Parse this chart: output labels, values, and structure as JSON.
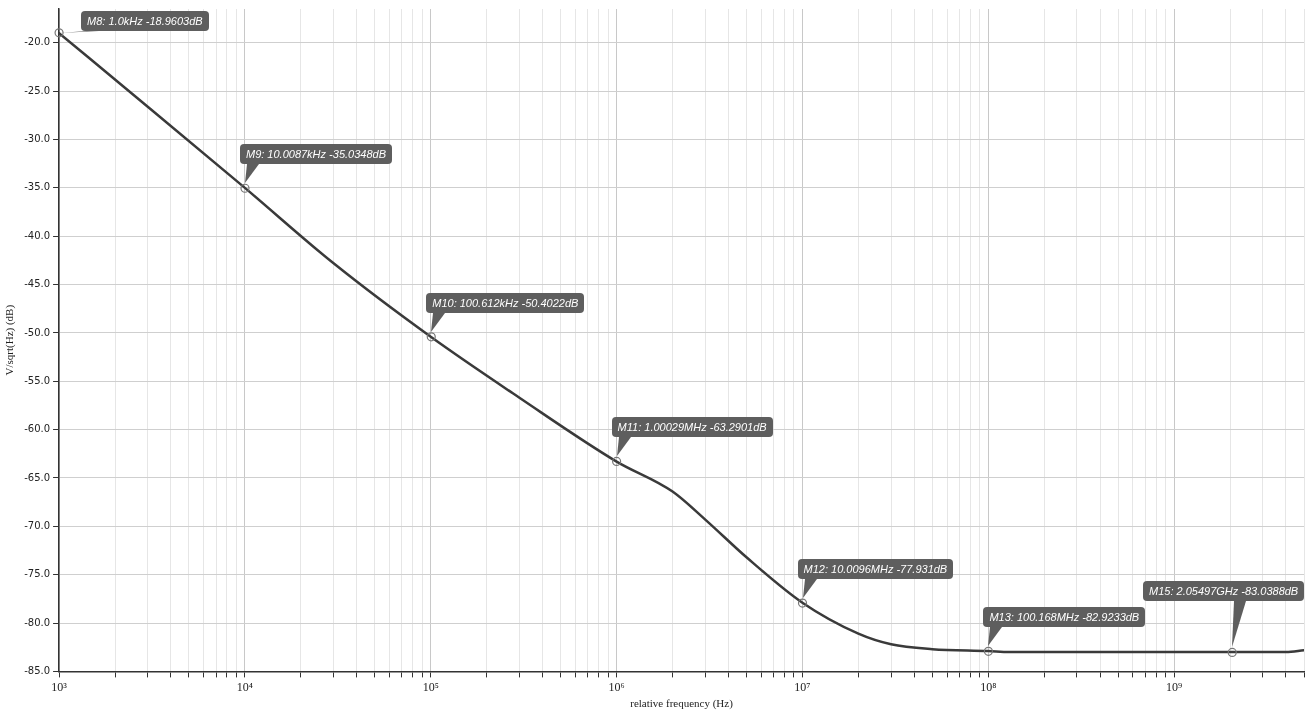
{
  "chart_data": {
    "type": "line",
    "xlabel": "relative frequency (Hz)",
    "ylabel": "V/sqrt(Hz) (dB)",
    "log": "x",
    "grid": true,
    "legend": false,
    "marker": "none",
    "line_style": "solid",
    "xlim": [
      1000,
      5000000000
    ],
    "ylim": [
      -85,
      -16.5
    ],
    "xticks": [
      {
        "value": 1000,
        "label": "10³"
      },
      {
        "value": 2000,
        "label": null
      },
      {
        "value": 3000,
        "label": null
      },
      {
        "value": 4000,
        "label": null
      },
      {
        "value": 5000,
        "label": null
      },
      {
        "value": 6000,
        "label": null
      },
      {
        "value": 7000,
        "label": null
      },
      {
        "value": 8000,
        "label": null
      },
      {
        "value": 9000,
        "label": null
      },
      {
        "value": 10000,
        "label": "10⁴"
      },
      {
        "value": 20000,
        "label": null
      },
      {
        "value": 30000,
        "label": null
      },
      {
        "value": 40000,
        "label": null
      },
      {
        "value": 50000,
        "label": null
      },
      {
        "value": 60000,
        "label": null
      },
      {
        "value": 70000,
        "label": null
      },
      {
        "value": 80000,
        "label": null
      },
      {
        "value": 90000,
        "label": null
      },
      {
        "value": 100000,
        "label": "10⁵"
      },
      {
        "value": 200000,
        "label": null
      },
      {
        "value": 300000,
        "label": null
      },
      {
        "value": 400000,
        "label": null
      },
      {
        "value": 500000,
        "label": null
      },
      {
        "value": 600000,
        "label": null
      },
      {
        "value": 700000,
        "label": null
      },
      {
        "value": 800000,
        "label": null
      },
      {
        "value": 900000,
        "label": null
      },
      {
        "value": 1000000,
        "label": "10⁶"
      },
      {
        "value": 2000000,
        "label": null
      },
      {
        "value": 3000000,
        "label": null
      },
      {
        "value": 4000000,
        "label": null
      },
      {
        "value": 5000000,
        "label": null
      },
      {
        "value": 6000000,
        "label": null
      },
      {
        "value": 7000000,
        "label": null
      },
      {
        "value": 8000000,
        "label": null
      },
      {
        "value": 9000000,
        "label": null
      },
      {
        "value": 10000000,
        "label": "10⁷"
      },
      {
        "value": 20000000,
        "label": null
      },
      {
        "value": 30000000,
        "label": null
      },
      {
        "value": 40000000,
        "label": null
      },
      {
        "value": 50000000,
        "label": null
      },
      {
        "value": 60000000,
        "label": null
      },
      {
        "value": 70000000,
        "label": null
      },
      {
        "value": 80000000,
        "label": null
      },
      {
        "value": 90000000,
        "label": null
      },
      {
        "value": 100000000,
        "label": "10⁸"
      },
      {
        "value": 200000000,
        "label": null
      },
      {
        "value": 300000000,
        "label": null
      },
      {
        "value": 400000000,
        "label": null
      },
      {
        "value": 500000000,
        "label": null
      },
      {
        "value": 600000000,
        "label": null
      },
      {
        "value": 700000000,
        "label": null
      },
      {
        "value": 800000000,
        "label": null
      },
      {
        "value": 900000000,
        "label": null
      },
      {
        "value": 1000000000,
        "label": "10⁹"
      },
      {
        "value": 2000000000,
        "label": null
      },
      {
        "value": 3000000000,
        "label": null
      },
      {
        "value": 4000000000,
        "label": null
      },
      {
        "value": 5000000000,
        "label": null
      }
    ],
    "yticks": [
      {
        "value": -20,
        "label": "-20.0"
      },
      {
        "value": -25,
        "label": "-25.0"
      },
      {
        "value": -30,
        "label": "-30.0"
      },
      {
        "value": -35,
        "label": "-35.0"
      },
      {
        "value": -40,
        "label": "-40.0"
      },
      {
        "value": -45,
        "label": "-45.0"
      },
      {
        "value": -50,
        "label": "-50.0"
      },
      {
        "value": -55,
        "label": "-55.0"
      },
      {
        "value": -60,
        "label": "-60.0"
      },
      {
        "value": -65,
        "label": "-65.0"
      },
      {
        "value": -70,
        "label": "-70.0"
      },
      {
        "value": -75,
        "label": "-75.0"
      },
      {
        "value": -80,
        "label": "-80.0"
      },
      {
        "value": -85,
        "label": "-85.0"
      }
    ],
    "x": [
      1000,
      3000,
      10000,
      30000,
      100000,
      300000,
      1000000,
      2000000,
      3000000,
      5000000,
      10000000,
      20000000,
      30000000,
      50000000,
      100000000,
      130000000,
      500000000,
      2000000000,
      4000000000,
      5000000000
    ],
    "series": [
      {
        "color": "#3a3a3a",
        "values": [
          -19.0,
          -26.6,
          -35.0,
          -42.8,
          -50.4,
          -56.7,
          -63.3,
          -66.4,
          -69.3,
          -73.2,
          -77.9,
          -81.1,
          -82.2,
          -82.7,
          -82.9,
          -83.0,
          -83.0,
          -83.0,
          -83.0,
          -82.8
        ]
      }
    ],
    "annotations": [
      {
        "text": "M8: 1.0kHz -18.9603dB",
        "x": 1000,
        "y": -18.9603
      },
      {
        "text": "M9: 10.0087kHz -35.0348dB",
        "x": 10008.7,
        "y": -35.0348
      },
      {
        "text": "M10: 100.612kHz -50.4022dB",
        "x": 100612,
        "y": -50.4022
      },
      {
        "text": "M11: 1.00029MHz -63.2901dB",
        "x": 1000290,
        "y": -63.2901
      },
      {
        "text": "M12: 10.0096MHz -77.931dB",
        "x": 10009600,
        "y": -77.931
      },
      {
        "text": "M13: 100.168MHz -82.9233dB",
        "x": 100168000,
        "y": -82.9233
      },
      {
        "text": "M15: 2.05497GHz -83.0388dB",
        "x": 2054970000,
        "y": -83.0388
      }
    ]
  }
}
